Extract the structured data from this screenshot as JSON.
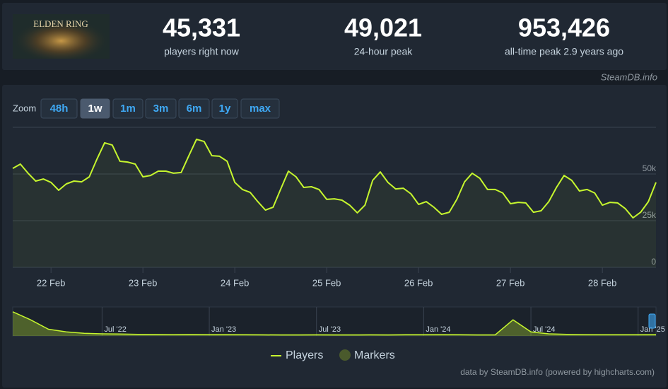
{
  "header": {
    "game": "ELDEN RING",
    "stats": [
      {
        "value": "45,331",
        "label": "players right now"
      },
      {
        "value": "49,021",
        "label": "24-hour peak"
      },
      {
        "value": "953,426",
        "label": "all-time peak 2.9 years ago"
      }
    ],
    "source": "SteamDB.info"
  },
  "zoom": {
    "label": "Zoom",
    "buttons": [
      "48h",
      "1w",
      "1m",
      "3m",
      "6m",
      "1y",
      "max"
    ],
    "active": 1
  },
  "chart_data": [
    {
      "type": "line",
      "categories": [
        null,
        null,
        null,
        null,
        null,
        "22 Feb",
        null,
        null,
        null,
        null,
        null,
        null,
        null,
        null,
        null,
        null,
        null,
        "23 Feb",
        null,
        null,
        null,
        null,
        null,
        null,
        null,
        null,
        null,
        null,
        null,
        "24 Feb",
        null,
        null,
        null,
        null,
        null,
        null,
        null,
        null,
        null,
        null,
        null,
        "25 Feb",
        null,
        null,
        null,
        null,
        null,
        null,
        null,
        null,
        null,
        null,
        null,
        "26 Feb",
        null,
        null,
        null,
        null,
        null,
        null,
        null,
        null,
        null,
        null,
        null,
        "27 Feb",
        null,
        null,
        null,
        null,
        null,
        null,
        null,
        null,
        null,
        null,
        null,
        "28 Feb",
        null,
        null,
        null,
        null,
        null,
        null,
        null
      ],
      "series": [
        {
          "name": "Players",
          "color": "#c6f62e",
          "values": [
            53000,
            55300,
            50400,
            46200,
            47300,
            45500,
            41300,
            44700,
            46200,
            45800,
            48500,
            58000,
            66700,
            65500,
            56800,
            56400,
            55300,
            48500,
            49200,
            51500,
            51500,
            50400,
            50800,
            59800,
            68600,
            67400,
            59800,
            59500,
            56800,
            45500,
            41700,
            40200,
            35200,
            30700,
            32200,
            42000,
            51500,
            48500,
            42800,
            43200,
            41700,
            36400,
            36700,
            36000,
            33300,
            29200,
            33300,
            46600,
            51100,
            45500,
            42000,
            42400,
            39400,
            33700,
            35200,
            32200,
            28400,
            29500,
            36400,
            45800,
            50400,
            47700,
            41700,
            41700,
            39800,
            34100,
            34800,
            34500,
            29500,
            30300,
            35200,
            42800,
            49200,
            46600,
            40900,
            41700,
            39800,
            33300,
            34800,
            34500,
            31400,
            26500,
            29500,
            35200,
            45500
          ]
        }
      ],
      "markers": {
        "name": "Markers",
        "color": "#4a5a2c"
      },
      "ylim": [
        0,
        75000
      ],
      "yticks": [
        0,
        {
          "value": 25000,
          "label": "25k"
        },
        {
          "value": 50000,
          "label": "50k"
        }
      ],
      "grid": true
    },
    {
      "type": "area",
      "categories": [
        null,
        null,
        null,
        null,
        null,
        "Jul '22",
        null,
        null,
        null,
        null,
        null,
        "Jan '23",
        null,
        null,
        null,
        null,
        null,
        "Jul '23",
        null,
        null,
        null,
        null,
        null,
        "Jan '24",
        null,
        null,
        null,
        null,
        null,
        "Jul '24",
        null,
        null,
        null,
        null,
        null,
        "Jan '25",
        null
      ],
      "color": "#c6f62e",
      "values": [
        900000,
        600000,
        250000,
        150000,
        100000,
        80000,
        70000,
        60000,
        55000,
        50000,
        55000,
        50000,
        50000,
        45000,
        42000,
        40000,
        40000,
        42000,
        40000,
        40000,
        42000,
        40000,
        45000,
        45000,
        50000,
        45000,
        40000,
        40000,
        600000,
        150000,
        80000,
        60000,
        50000,
        45000,
        45000,
        45000,
        50000
      ],
      "ylim": [
        0,
        1000000
      ]
    }
  ],
  "credit": "data by SteamDB.info (powered by highcharts.com)"
}
